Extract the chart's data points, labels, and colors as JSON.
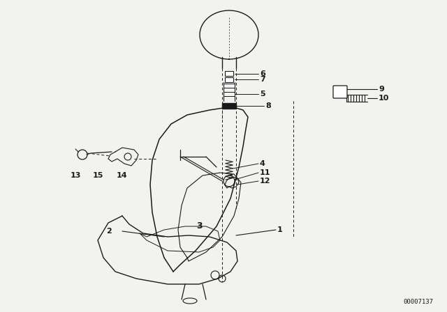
{
  "bg_color": "#f2f2ee",
  "line_color": "#1a1a1a",
  "text_color": "#1a1a1a",
  "diagram_code": "00007137",
  "fig_w": 6.4,
  "fig_h": 4.48,
  "dpi": 100
}
